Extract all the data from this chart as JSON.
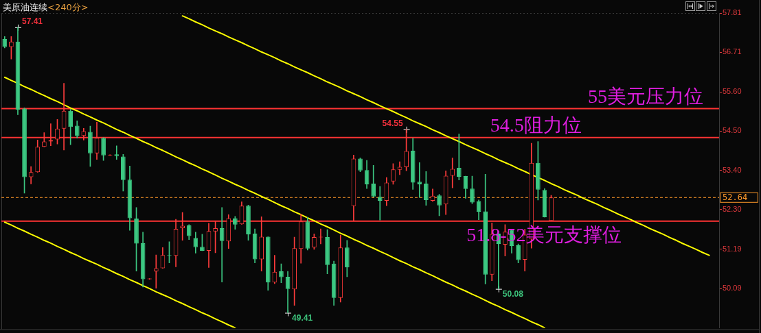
{
  "chart_data": {
    "type": "candlestick",
    "title": "美原油连续",
    "subtitle": "<240分>",
    "categories": [
      null,
      null,
      null,
      null,
      null,
      null,
      null,
      null,
      null,
      null,
      null,
      null,
      null,
      null,
      null,
      null,
      null,
      null,
      null,
      null,
      null,
      null,
      null,
      null,
      null,
      null,
      null,
      null,
      null,
      null,
      null,
      null,
      null,
      null,
      null,
      null,
      null,
      null,
      null,
      null,
      null,
      null,
      null,
      null,
      null,
      null,
      null,
      null,
      null,
      null,
      null,
      null,
      null,
      null,
      null,
      null,
      null,
      null,
      null,
      null,
      null,
      null,
      null,
      null,
      null,
      null,
      null,
      null,
      null,
      null,
      null,
      null,
      null,
      null,
      null,
      null,
      null,
      null,
      null,
      null,
      null,
      null,
      null,
      null,
      null,
      null,
      null,
      null,
      null,
      null,
      null,
      null,
      null,
      null,
      null,
      null,
      null,
      null,
      null,
      null,
      null,
      null,
      null,
      null,
      null,
      null,
      null,
      null,
      null
    ],
    "ohlc": [
      [
        57.08,
        57.15,
        56.83,
        56.86
      ],
      [
        56.86,
        57.15,
        56.52,
        57.01
      ],
      [
        57.01,
        57.41,
        54.96,
        55.1
      ],
      [
        55.13,
        55.15,
        52.76,
        53.21
      ],
      [
        53.21,
        53.51,
        53.02,
        53.35
      ],
      [
        53.35,
        54.25,
        53.35,
        54.06
      ],
      [
        54.06,
        54.46,
        54.06,
        54.21
      ],
      [
        54.21,
        54.71,
        54.09,
        54.25
      ],
      [
        54.27,
        54.83,
        54.14,
        54.57
      ],
      [
        54.57,
        55.84,
        53.97,
        55.07
      ],
      [
        55.07,
        55.11,
        54.12,
        54.62
      ],
      [
        54.65,
        54.79,
        54.31,
        54.37
      ],
      [
        54.37,
        54.58,
        54.25,
        54.5
      ],
      [
        54.48,
        54.64,
        53.51,
        53.88
      ],
      [
        53.88,
        54.75,
        53.71,
        54.31
      ],
      [
        54.31,
        54.32,
        53.68,
        53.82
      ],
      [
        53.82,
        53.84,
        53.82,
        53.84
      ],
      [
        53.85,
        54.09,
        53.71,
        53.8
      ],
      [
        53.79,
        53.85,
        52.82,
        53.13
      ],
      [
        53.14,
        53.52,
        51.72,
        52.06
      ],
      [
        52.05,
        52.36,
        50.58,
        51.35
      ],
      [
        51.36,
        51.67,
        50.13,
        50.35
      ],
      [
        50.35,
        50.37,
        50.35,
        50.37
      ],
      [
        50.57,
        51.03,
        50.1,
        50.66
      ],
      [
        50.66,
        51.24,
        50.66,
        51.03
      ],
      [
        51.03,
        51.4,
        50.81,
        51.01
      ],
      [
        51.01,
        52.03,
        50.7,
        51.76
      ],
      [
        51.78,
        52.22,
        51.44,
        51.85
      ],
      [
        51.86,
        51.88,
        51.46,
        51.56
      ],
      [
        51.51,
        51.67,
        51.08,
        51.25
      ],
      [
        51.26,
        51.61,
        51.15,
        51.15
      ],
      [
        51.15,
        51.92,
        50.68,
        51.7
      ],
      [
        51.69,
        51.97,
        51.09,
        51.78
      ],
      [
        51.78,
        52.36,
        50.27,
        51.42
      ],
      [
        51.41,
        52.16,
        51.21,
        52.06
      ],
      [
        52.06,
        52.11,
        51.75,
        51.88
      ],
      [
        51.89,
        52.52,
        51.89,
        52.41
      ],
      [
        52.41,
        52.43,
        51.44,
        51.61
      ],
      [
        51.63,
        51.76,
        50.81,
        50.91
      ],
      [
        50.91,
        52.1,
        50.58,
        51.54
      ],
      [
        51.54,
        51.54,
        50.04,
        50.26
      ],
      [
        50.26,
        51.02,
        50.23,
        50.56
      ],
      [
        50.57,
        50.78,
        50.25,
        50.41
      ],
      [
        50.42,
        50.57,
        49.41,
        50.08
      ],
      [
        50.07,
        51.53,
        49.62,
        51.22
      ],
      [
        51.2,
        52.18,
        50.8,
        51.97
      ],
      [
        51.97,
        52.08,
        51.17,
        51.21
      ],
      [
        51.24,
        51.62,
        51.19,
        51.53
      ],
      [
        51.52,
        51.76,
        51.34,
        51.54
      ],
      [
        51.53,
        51.74,
        50.5,
        50.75
      ],
      [
        50.79,
        50.86,
        49.62,
        49.83
      ],
      [
        49.83,
        51.59,
        49.71,
        51.24
      ],
      [
        51.24,
        51.44,
        50.42,
        50.68
      ],
      [
        52.4,
        53.83,
        51.99,
        53.73
      ],
      [
        53.73,
        53.75,
        53.36,
        53.4
      ],
      [
        53.41,
        53.68,
        52.89,
        53.01
      ],
      [
        53.03,
        53.54,
        52.65,
        52.67
      ],
      [
        52.66,
        52.95,
        52.01,
        52.55
      ],
      [
        52.55,
        53.2,
        52.41,
        53.06
      ],
      [
        53.09,
        53.59,
        53.01,
        53.43
      ],
      [
        53.42,
        53.64,
        53.28,
        53.5
      ],
      [
        53.49,
        54.55,
        53.39,
        53.94
      ],
      [
        53.95,
        54.3,
        52.87,
        53.06
      ],
      [
        53.08,
        53.62,
        52.64,
        53.01
      ],
      [
        53.03,
        53.37,
        52.42,
        52.57
      ],
      [
        52.55,
        52.88,
        52.53,
        52.69
      ],
      [
        52.7,
        52.73,
        52.13,
        52.42
      ],
      [
        52.45,
        53.39,
        52.16,
        53.25
      ],
      [
        53.25,
        53.75,
        52.91,
        53.44
      ],
      [
        53.47,
        54.42,
        53.13,
        53.22
      ],
      [
        53.24,
        53.24,
        52.62,
        52.88
      ],
      [
        52.89,
        53.24,
        52.47,
        52.5
      ],
      [
        52.53,
        52.57,
        52.02,
        52.24
      ],
      [
        52.25,
        53.29,
        50.22,
        50.48
      ],
      [
        50.48,
        51.93,
        50.31,
        51.62
      ],
      [
        51.63,
        51.7,
        50.08,
        51.34
      ],
      [
        51.32,
        51.88,
        51.0,
        51.68
      ],
      [
        51.74,
        51.74,
        51.08,
        51.28
      ],
      [
        51.3,
        51.34,
        50.81,
        50.89
      ],
      [
        50.9,
        51.75,
        50.58,
        51.6
      ],
      [
        51.47,
        54.16,
        51.22,
        53.61
      ],
      [
        53.61,
        54.21,
        52.57,
        52.86
      ],
      [
        52.85,
        52.89,
        52.09,
        52.09
      ],
      [
        51.99,
        52.7,
        51.99,
        52.64
      ],
      null,
      null,
      null,
      null,
      null,
      null,
      null,
      null,
      null,
      null,
      null,
      null,
      null,
      null,
      null,
      null,
      null,
      null,
      null,
      null,
      null,
      null,
      null,
      null,
      null
    ],
    "colors": [
      "#3cc882",
      "#ff3c3c",
      "#3cc882",
      "#3cc882",
      "#ff3c3c",
      "#ff3c3c",
      "#ff3c3c",
      "#ff3c3c",
      "#ff3c3c",
      "#ff3c3c",
      "#3cc882",
      "#3cc882",
      "#ff3c3c",
      "#3cc882",
      "#ff3c3c",
      "#3cc882",
      "#ff3c3c",
      "#3cc882",
      "#3cc882",
      "#3cc882",
      "#3cc882",
      "#3cc882",
      "#ff3c3c",
      "#ff3c3c",
      "#ff3c3c",
      "#3cc882",
      "#ff3c3c",
      "#ff3c3c",
      "#3cc882",
      "#3cc882",
      "#3cc882",
      "#ff3c3c",
      "#ff3c3c",
      "#3cc882",
      "#ff3c3c",
      "#3cc882",
      "#ff3c3c",
      "#3cc882",
      "#3cc882",
      "#ff3c3c",
      "#3cc882",
      "#ff3c3c",
      "#3cc882",
      "#3cc882",
      "#ff3c3c",
      "#ff3c3c",
      "#3cc882",
      "#ff3c3c",
      "#ff3c3c",
      "#3cc882",
      "#3cc882",
      "#ff3c3c",
      "#3cc882",
      "#ff3c3c",
      "#3cc882",
      "#3cc882",
      "#3cc882",
      "#3cc882",
      "#ff3c3c",
      "#ff3c3c",
      "#ff3c3c",
      "#ff3c3c",
      "#3cc882",
      "#3cc882",
      "#3cc882",
      "#ff3c3c",
      "#3cc882",
      "#ff3c3c",
      "#ff3c3c",
      "#3cc882",
      "#3cc882",
      "#3cc882",
      "#3cc882",
      "#3cc882",
      "#ff3c3c",
      "#3cc882",
      "#ff3c3c",
      "#3cc882",
      "#3cc882",
      "#ff3c3c",
      "#ff3c3c",
      "#3cc882",
      "#3cc882",
      "#ff3c3c",
      null,
      null,
      null,
      null,
      null,
      null,
      null,
      null,
      null,
      null,
      null,
      null,
      null,
      null,
      null,
      null,
      null,
      null,
      null,
      null,
      null,
      null,
      null,
      null,
      null
    ],
    "series": [
      {
        "type": "line",
        "color": "#ffff00",
        "values": [
          null,
          null,
          null,
          null,
          null,
          null,
          null,
          null,
          null,
          null,
          null,
          null,
          null,
          null,
          null,
          null,
          null,
          null,
          null,
          null,
          null,
          null,
          null,
          null,
          null,
          null,
          null,
          57.73,
          57.65,
          57.56,
          57.48,
          57.39,
          57.31,
          57.23,
          57.14,
          57.06,
          56.98,
          56.89,
          56.81,
          56.72,
          56.64,
          56.56,
          56.47,
          56.39,
          56.3,
          56.22,
          56.14,
          56.05,
          55.97,
          55.88,
          55.8,
          55.72,
          55.63,
          55.55,
          55.47,
          55.38,
          55.3,
          55.21,
          55.13,
          55.05,
          54.96,
          54.88,
          54.79,
          54.71,
          54.63,
          54.54,
          54.46,
          54.37,
          54.29,
          54.21,
          54.12,
          54.04,
          53.96,
          53.87,
          53.79,
          53.7,
          53.62,
          53.54,
          53.45,
          53.37,
          53.28,
          53.2,
          53.12,
          53.03,
          52.95,
          52.86,
          52.78,
          52.7,
          52.61,
          52.53,
          52.45,
          52.36,
          52.28,
          52.19,
          52.11,
          52.03,
          51.94,
          51.86,
          51.77,
          51.69,
          51.61,
          51.52,
          51.44,
          51.35,
          51.27,
          51.19,
          51.1,
          51.02,
          null
        ]
      },
      {
        "type": "line",
        "color": "#ffff00",
        "values": [
          56.01,
          55.92,
          55.84,
          55.75,
          55.67,
          55.58,
          55.5,
          55.41,
          55.33,
          55.24,
          55.15,
          55.07,
          54.98,
          54.9,
          54.81,
          54.73,
          54.64,
          54.55,
          54.47,
          54.38,
          54.3,
          54.21,
          54.13,
          54.04,
          53.96,
          53.87,
          53.78,
          53.7,
          53.61,
          53.53,
          53.44,
          53.36,
          53.27,
          53.18,
          53.1,
          53.01,
          52.93,
          52.84,
          52.76,
          52.67,
          52.59,
          52.5,
          52.41,
          52.33,
          52.24,
          52.16,
          52.07,
          51.99,
          51.9,
          51.82,
          51.73,
          51.64,
          51.56,
          51.47,
          51.39,
          51.3,
          51.22,
          51.13,
          51.05,
          50.96,
          50.87,
          50.79,
          50.7,
          50.62,
          50.53,
          50.45,
          50.36,
          50.27,
          50.19,
          50.1,
          50.02,
          49.93,
          49.85,
          49.76,
          49.67,
          49.59,
          49.5,
          49.42,
          49.33,
          49.25,
          49.16,
          49.08,
          48.99,
          null,
          null,
          null,
          null,
          null,
          null,
          null,
          null,
          null,
          null,
          null,
          null,
          null,
          null,
          null,
          null,
          null,
          null,
          null,
          null,
          null,
          null,
          null,
          null,
          null,
          null
        ]
      },
      {
        "type": "line",
        "color": "#ffff00",
        "values": [
          51.95,
          51.87,
          51.78,
          51.7,
          51.61,
          51.53,
          51.44,
          51.36,
          51.27,
          51.19,
          51.1,
          51.02,
          50.93,
          50.85,
          50.77,
          50.68,
          50.6,
          50.51,
          50.43,
          50.34,
          50.26,
          50.17,
          50.09,
          50.0,
          49.92,
          49.84,
          49.75,
          49.67,
          49.58,
          49.5,
          49.41,
          49.33,
          49.24,
          49.16,
          49.07,
          48.99,
          null,
          null,
          null,
          null,
          null,
          null,
          null,
          null,
          null,
          null,
          null,
          null,
          null,
          null,
          null,
          null,
          null,
          null,
          null,
          null,
          null,
          null,
          null,
          null,
          null,
          null,
          null,
          null,
          null,
          null,
          null,
          null,
          null,
          null,
          null,
          null,
          null,
          null,
          null,
          null,
          null,
          null,
          null,
          null,
          null,
          null,
          null,
          null,
          null,
          null,
          null,
          null,
          null,
          null,
          null,
          null,
          null,
          null,
          null,
          null,
          null,
          null,
          null,
          null,
          null,
          null,
          null,
          null,
          null,
          null,
          null,
          null,
          null
        ]
      }
    ],
    "ylim": [
      48.99,
      57.81
    ],
    "yticks": [
      57.81,
      56.71,
      {
        "value": 55.6,
        "label": "55.60"
      },
      {
        "value": 54.5,
        "label": "54.50"
      },
      {
        "value": 53.4,
        "label": "53.40"
      },
      {
        "value": 52.3,
        "label": "52.30"
      },
      51.19,
      50.09
    ],
    "tick_labels": "y",
    "ref_lines": [
      {
        "axis": "y",
        "value": 55.13,
        "label": "55美元压力位",
        "color": "#ff3333"
      },
      {
        "axis": "y",
        "value": 54.32,
        "label": "54.5阻力位",
        "color": "#ff3333"
      },
      {
        "axis": "y",
        "value": 51.98,
        "label": "51.8-52美元支撑位",
        "color": "#ff3333"
      },
      {
        "axis": "y",
        "value": 52.64,
        "label": "52.64",
        "color": "#ff9a2a",
        "line_style": "dashed"
      }
    ],
    "annotations": [
      "57.41",
      "54.55",
      "49.41",
      "50.08"
    ]
  }
}
